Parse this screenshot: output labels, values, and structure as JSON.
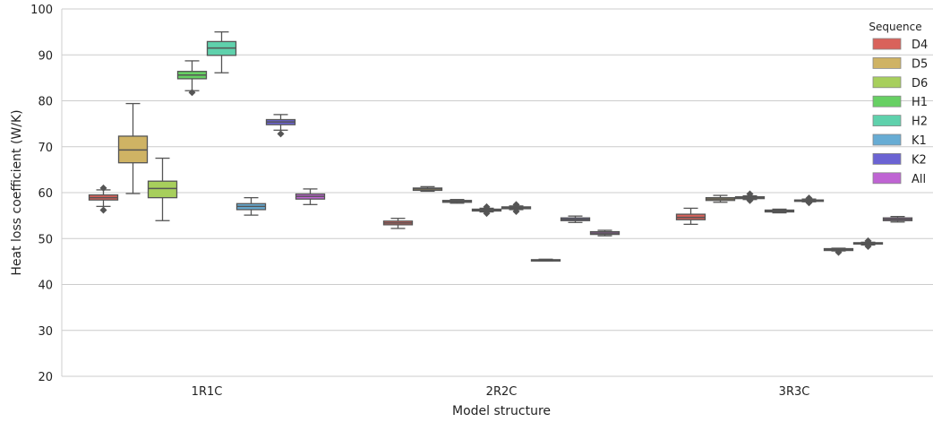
{
  "chart_data": {
    "type": "box",
    "xlabel": "Model structure",
    "ylabel": "Heat loss coefficient (W/K)",
    "ylim": [
      20,
      100
    ],
    "yticks": [
      20,
      30,
      40,
      50,
      60,
      70,
      80,
      90,
      100
    ],
    "grid": true,
    "categories": [
      "1R1C",
      "2R2C",
      "3R3C"
    ],
    "legend": {
      "title": "Sequence",
      "position": "top-right"
    },
    "series": [
      {
        "name": "D4",
        "color": "#d9625b",
        "boxes": [
          {
            "whisker_low": 57.0,
            "q1": 58.4,
            "median": 58.9,
            "q3": 59.5,
            "whisker_high": 60.6,
            "outliers": [
              56.2,
              61.0
            ]
          },
          {
            "whisker_low": 52.2,
            "q1": 53.0,
            "median": 53.4,
            "q3": 53.8,
            "whisker_high": 54.4,
            "outliers": []
          },
          {
            "whisker_low": 53.1,
            "q1": 54.1,
            "median": 54.6,
            "q3": 55.3,
            "whisker_high": 56.6,
            "outliers": []
          }
        ]
      },
      {
        "name": "D5",
        "color": "#cfb364",
        "boxes": [
          {
            "whisker_low": 59.8,
            "q1": 66.5,
            "median": 69.3,
            "q3": 72.3,
            "whisker_high": 79.4,
            "outliers": []
          },
          {
            "whisker_low": 60.3,
            "q1": 60.5,
            "median": 60.8,
            "q3": 61.0,
            "whisker_high": 61.3,
            "outliers": []
          },
          {
            "whisker_low": 57.9,
            "q1": 58.3,
            "median": 58.6,
            "q3": 58.9,
            "whisker_high": 59.4,
            "outliers": []
          }
        ]
      },
      {
        "name": "D6",
        "color": "#a7cf5c",
        "boxes": [
          {
            "whisker_low": 53.9,
            "q1": 58.9,
            "median": 60.9,
            "q3": 62.5,
            "whisker_high": 67.5,
            "outliers": []
          },
          {
            "whisker_low": 57.7,
            "q1": 57.9,
            "median": 58.1,
            "q3": 58.3,
            "whisker_high": 58.5,
            "outliers": []
          },
          {
            "whisker_low": 58.5,
            "q1": 58.7,
            "median": 58.9,
            "q3": 59.1,
            "whisker_high": 59.3,
            "outliers": [
              58.3,
              59.7
            ]
          }
        ]
      },
      {
        "name": "H1",
        "color": "#67d063",
        "boxes": [
          {
            "whisker_low": 82.2,
            "q1": 84.8,
            "median": 85.6,
            "q3": 86.4,
            "whisker_high": 88.7,
            "outliers": [
              81.8
            ]
          },
          {
            "whisker_low": 55.8,
            "q1": 56.0,
            "median": 56.2,
            "q3": 56.4,
            "whisker_high": 56.6,
            "outliers": [
              55.5,
              56.9
            ]
          },
          {
            "whisker_low": 55.6,
            "q1": 55.8,
            "median": 56.0,
            "q3": 56.2,
            "whisker_high": 56.4,
            "outliers": []
          }
        ]
      },
      {
        "name": "H2",
        "color": "#5fd1ac",
        "boxes": [
          {
            "whisker_low": 86.1,
            "q1": 89.9,
            "median": 91.5,
            "q3": 92.9,
            "whisker_high": 95.0,
            "outliers": []
          },
          {
            "whisker_low": 56.3,
            "q1": 56.5,
            "median": 56.7,
            "q3": 56.9,
            "whisker_high": 57.1,
            "outliers": [
              55.9,
              57.4
            ]
          },
          {
            "whisker_low": 58.0,
            "q1": 58.1,
            "median": 58.3,
            "q3": 58.4,
            "whisker_high": 58.6,
            "outliers": [
              57.8,
              58.8
            ]
          }
        ]
      },
      {
        "name": "K1",
        "color": "#67acd4",
        "boxes": [
          {
            "whisker_low": 55.1,
            "q1": 56.3,
            "median": 57.0,
            "q3": 57.6,
            "whisker_high": 58.9,
            "outliers": []
          },
          {
            "whisker_low": 45.1,
            "q1": 45.2,
            "median": 45.3,
            "q3": 45.4,
            "whisker_high": 45.5,
            "outliers": []
          },
          {
            "whisker_low": 47.3,
            "q1": 47.4,
            "median": 47.6,
            "q3": 47.8,
            "whisker_high": 47.9,
            "outliers": [
              47.0
            ]
          }
        ]
      },
      {
        "name": "K2",
        "color": "#6b63d3",
        "boxes": [
          {
            "whisker_low": 73.6,
            "q1": 74.8,
            "median": 75.4,
            "q3": 75.9,
            "whisker_high": 77.0,
            "outliers": [
              72.8
            ]
          },
          {
            "whisker_low": 53.5,
            "q1": 53.9,
            "median": 54.2,
            "q3": 54.5,
            "whisker_high": 54.9,
            "outliers": []
          },
          {
            "whisker_low": 48.6,
            "q1": 48.8,
            "median": 48.9,
            "q3": 49.1,
            "whisker_high": 49.2,
            "outliers": [
              48.3,
              49.5
            ]
          }
        ]
      },
      {
        "name": "All",
        "color": "#bf64d3",
        "boxes": [
          {
            "whisker_low": 57.4,
            "q1": 58.6,
            "median": 59.2,
            "q3": 59.7,
            "whisker_high": 60.8,
            "outliers": []
          },
          {
            "whisker_low": 50.6,
            "q1": 50.9,
            "median": 51.2,
            "q3": 51.5,
            "whisker_high": 51.8,
            "outliers": []
          },
          {
            "whisker_low": 53.6,
            "q1": 53.9,
            "median": 54.2,
            "q3": 54.5,
            "whisker_high": 54.8,
            "outliers": []
          }
        ]
      }
    ]
  }
}
